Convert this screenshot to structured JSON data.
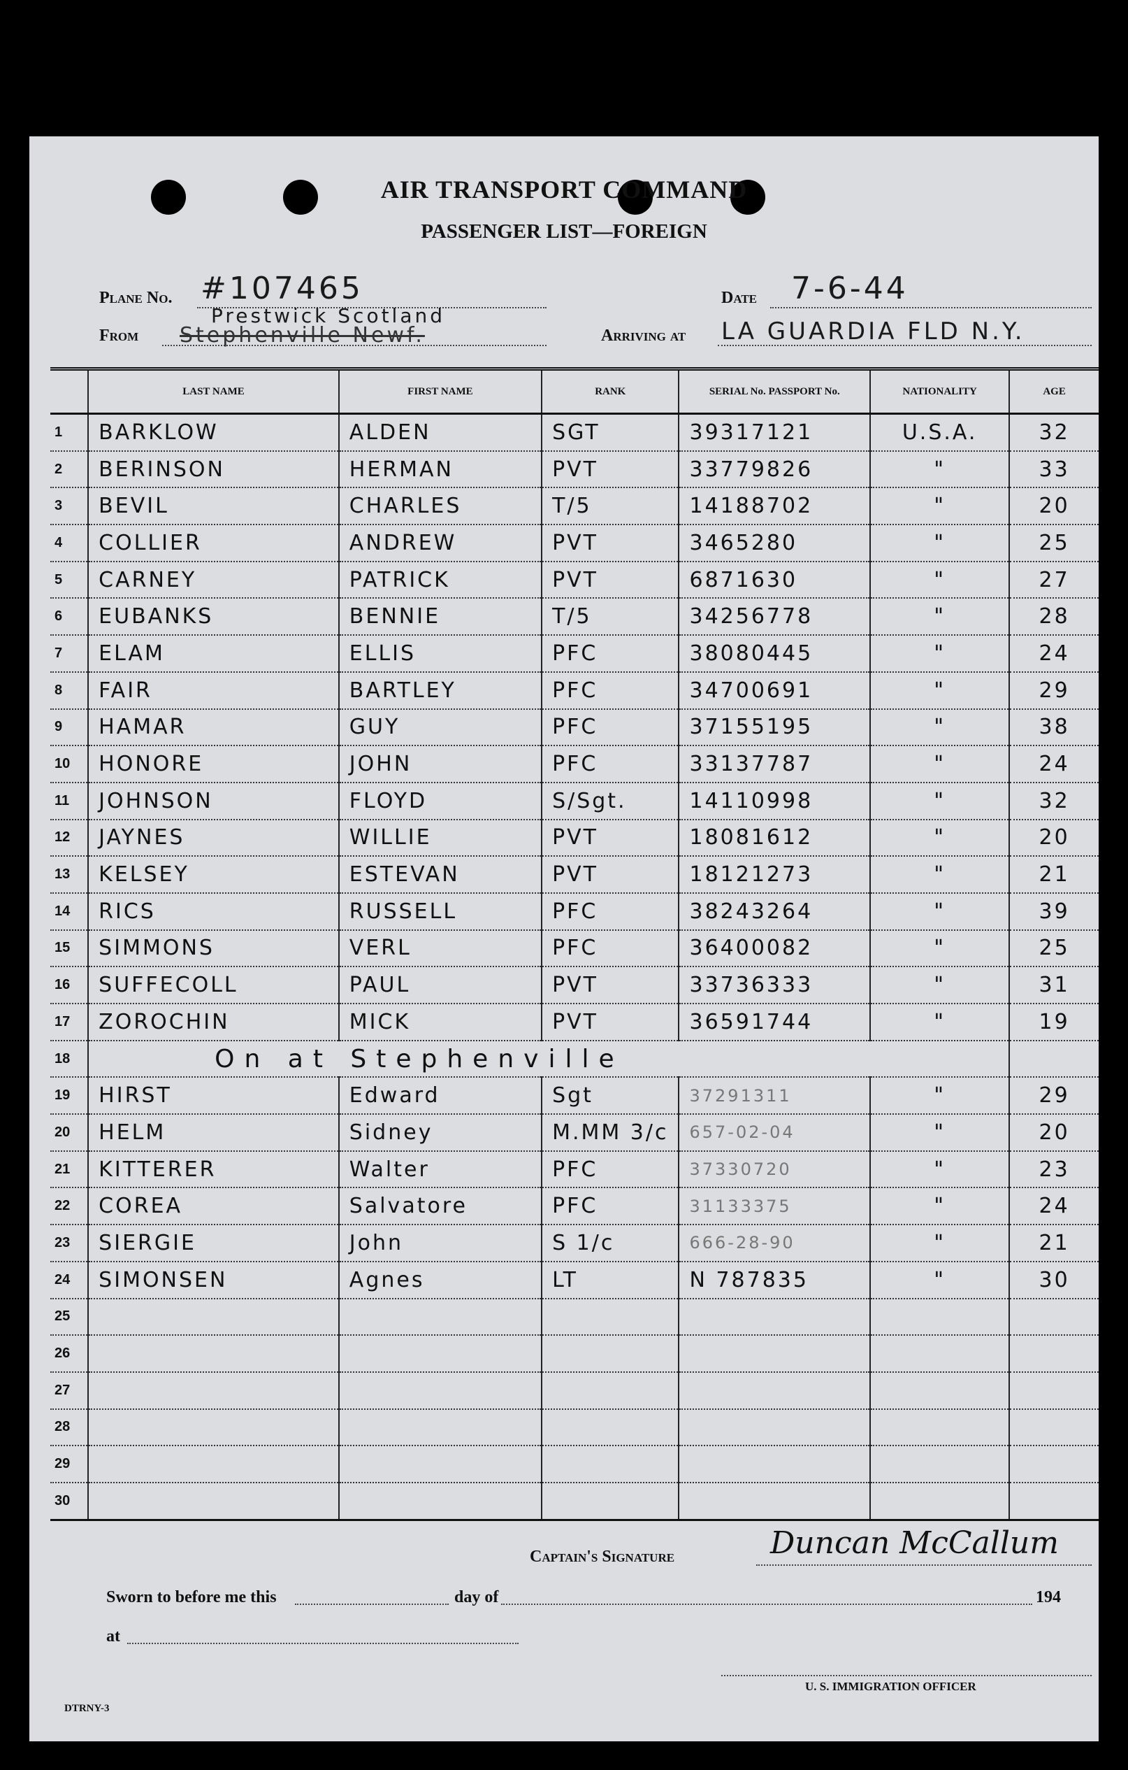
{
  "form": {
    "title": "AIR TRANSPORT COMMAND",
    "subtitle": "PASSENGER LIST—FOREIGN",
    "plane_no_label": "Plane No.",
    "plane_no": "#107465",
    "date_label": "Date",
    "date": "7-6-44",
    "from_label": "From",
    "from_struck": "Stephenville Newf.",
    "from": "Prestwick Scotland",
    "arriving_label": "Arriving at",
    "arriving": "LA GUARDIA FLD N.Y.",
    "form_number": "DTRNY-3"
  },
  "table": {
    "headers": [
      "",
      "LAST NAME",
      "FIRST NAME",
      "RANK",
      "SERIAL No. PASSPORT No.",
      "NATIONALITY",
      "AGE"
    ],
    "rows": [
      [
        "1",
        "BARKLOW",
        "ALDEN",
        "SGT",
        "39317121",
        "U.S.A.",
        "32"
      ],
      [
        "2",
        "BERINSON",
        "HERMAN",
        "PVT",
        "33779826",
        "\"",
        "33"
      ],
      [
        "3",
        "BEVIL",
        "CHARLES",
        "T/5",
        "14188702",
        "\"",
        "20"
      ],
      [
        "4",
        "COLLIER",
        "ANDREW",
        "PVT",
        "3465280",
        "\"",
        "25"
      ],
      [
        "5",
        "CARNEY",
        "PATRICK",
        "PVT",
        "6871630",
        "\"",
        "27"
      ],
      [
        "6",
        "EUBANKS",
        "BENNIE",
        "T/5",
        "34256778",
        "\"",
        "28"
      ],
      [
        "7",
        "ELAM",
        "ELLIS",
        "PFC",
        "38080445",
        "\"",
        "24"
      ],
      [
        "8",
        "FAIR",
        "BARTLEY",
        "PFC",
        "34700691",
        "\"",
        "29"
      ],
      [
        "9",
        "HAMAR",
        "GUY",
        "PFC",
        "37155195",
        "\"",
        "38"
      ],
      [
        "10",
        "HONORE",
        "JOHN",
        "PFC",
        "33137787",
        "\"",
        "24"
      ],
      [
        "11",
        "JOHNSON",
        "FLOYD",
        "S/Sgt.",
        "14110998",
        "\"",
        "32"
      ],
      [
        "12",
        "JAYNES",
        "WILLIE",
        "PVT",
        "18081612",
        "\"",
        "20"
      ],
      [
        "13",
        "KELSEY",
        "ESTEVAN",
        "PVT",
        "18121273",
        "\"",
        "21"
      ],
      [
        "14",
        "RICS",
        "RUSSELL",
        "PFC",
        "38243264",
        "\"",
        "39"
      ],
      [
        "15",
        "SIMMONS",
        "VERL",
        "PFC",
        "36400082",
        "\"",
        "25"
      ],
      [
        "16",
        "SUFFECOLL",
        "PAUL",
        "PVT",
        "33736333",
        "\"",
        "31"
      ],
      [
        "17",
        "ZOROCHIN",
        "MICK",
        "PVT",
        "36591744",
        "\"",
        "19"
      ],
      [
        "18",
        "On at Stephenville",
        "",
        "",
        "",
        "",
        ""
      ],
      [
        "19",
        "HIRST",
        "Edward",
        "Sgt",
        "37291311",
        "\"",
        "29"
      ],
      [
        "20",
        "HELM",
        "Sidney",
        "M.MM 3/c",
        "657-02-04",
        "\"",
        "20"
      ],
      [
        "21",
        "KITTERER",
        "Walter",
        "PFC",
        "37330720",
        "\"",
        "23"
      ],
      [
        "22",
        "COREA",
        "Salvatore",
        "PFC",
        "31133375",
        "\"",
        "24"
      ],
      [
        "23",
        "SIERGIE",
        "John",
        "S 1/c",
        "666-28-90",
        "\"",
        "21"
      ],
      [
        "24",
        "SIMONSEN",
        "Agnes",
        "LT",
        "N 787835",
        "\"",
        "30"
      ],
      [
        "25",
        "",
        "",
        "",
        "",
        "",
        ""
      ],
      [
        "26",
        "",
        "",
        "",
        "",
        "",
        ""
      ],
      [
        "27",
        "",
        "",
        "",
        "",
        "",
        ""
      ],
      [
        "28",
        "",
        "",
        "",
        "",
        "",
        ""
      ],
      [
        "29",
        "",
        "",
        "",
        "",
        "",
        ""
      ],
      [
        "30",
        "",
        "",
        "",
        "",
        "",
        ""
      ]
    ]
  },
  "footer": {
    "captain_label": "Captain's Signature",
    "captain_signature": "Duncan McCallum",
    "sworn_label": "Sworn to before me this",
    "day_of_label": "day of",
    "year_label": "194",
    "at_label": "at",
    "officer_label": "U. S. IMMIGRATION OFFICER"
  }
}
